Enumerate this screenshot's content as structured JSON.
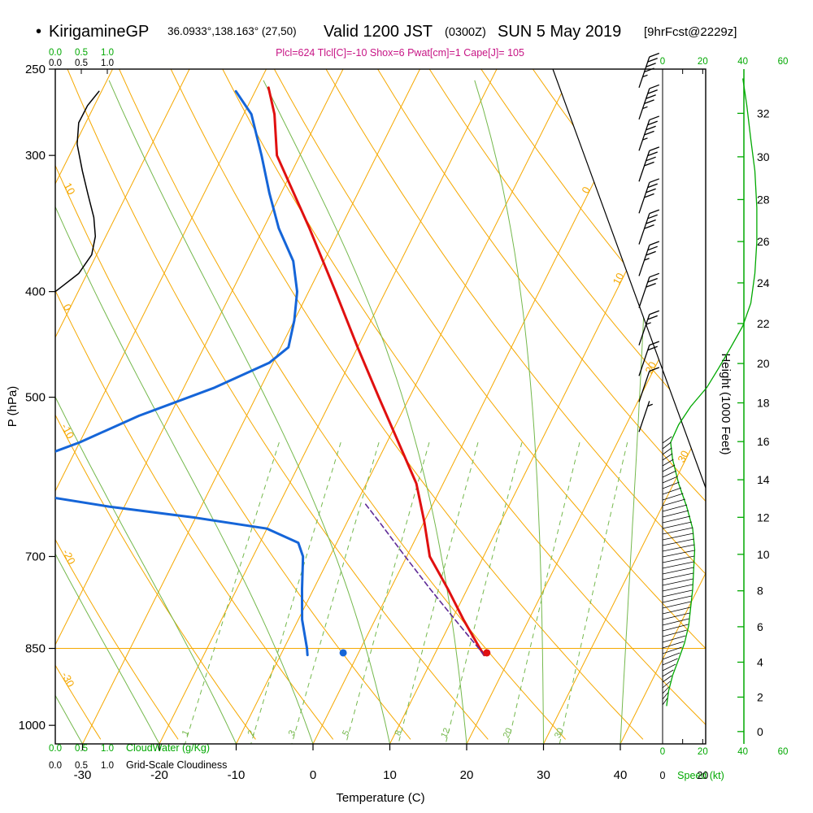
{
  "header": {
    "bullet": "•",
    "station": "KirigamineGP",
    "coords": "36.0933°,138.163° (27,50)",
    "valid": "Valid 1200 JST",
    "valid_z": "(0300Z)",
    "valid_date": "SUN 5 May 2019",
    "forecast": "[9hrFcst@2229z]",
    "indices_text": "Plcl=624 Tlcl[C]=-10 Shox=6 Pwat[cm]=1 Cape[J]= 105",
    "indices": {
      "Plcl": 624,
      "Tlcl_C": -10,
      "Shox": 6,
      "Pwat_cm": 1,
      "Cape_J": 105
    }
  },
  "axes": {
    "pressure": {
      "label": "P (hPa)",
      "ticks": [
        250,
        300,
        400,
        500,
        700,
        850,
        1000
      ]
    },
    "temperature": {
      "label": "Temperature (C)",
      "ticks": [
        -30,
        -20,
        -10,
        0,
        10,
        20,
        30,
        40
      ]
    },
    "height": {
      "label": "Height (1000 Feet)",
      "ticks": [
        0,
        2,
        4,
        6,
        8,
        10,
        12,
        14,
        16,
        18,
        20,
        22,
        24,
        26,
        28,
        30,
        32
      ]
    },
    "speed": {
      "label": "Speed (kt)",
      "green_ticks": [
        0,
        20,
        40,
        60
      ],
      "black_ticks": [
        0,
        20
      ]
    },
    "cloud_scale": {
      "ticks": [
        "0.0",
        "0.5",
        "1.0"
      ],
      "cloudwater_label": "CloudWater (g/Kg)",
      "cloudiness_label": "Grid-Scale Cloudiness"
    },
    "dry_adiabat_labels": [
      10,
      0,
      -10,
      -20,
      -30
    ],
    "isotherm_labels": [
      0,
      10,
      20,
      30
    ],
    "mixing_ratio_labels": [
      1,
      2,
      3,
      5,
      8,
      12,
      20,
      30
    ]
  },
  "chart_data": {
    "type": "skewt_logp",
    "pressure_range_hPa": [
      250,
      1040
    ],
    "temp_axis_range_C": [
      -30,
      40
    ],
    "temperature_profile": {
      "pressure_hPa": [
        862,
        850,
        800,
        750,
        700,
        650,
        600,
        550,
        500,
        450,
        400,
        350,
        300,
        275,
        260
      ],
      "temp_C": [
        16.5,
        15.5,
        11.5,
        7.5,
        3,
        0,
        -3.5,
        -8.5,
        -14,
        -20,
        -26.5,
        -34,
        -43,
        -46,
        -48.5
      ]
    },
    "dewpoint_profile": {
      "pressure_hPa": [
        862,
        850,
        800,
        750,
        700,
        680,
        660,
        645,
        630,
        618,
        600,
        575,
        550,
        520,
        490,
        465,
        450,
        425,
        400,
        375,
        350,
        325,
        300,
        275,
        262
      ],
      "temp_C": [
        -6.5,
        -7,
        -9.5,
        -11.5,
        -13.5,
        -15,
        -20,
        -30,
        -42,
        -50,
        -55,
        -56,
        -50,
        -44,
        -36,
        -30.5,
        -29,
        -30,
        -31.5,
        -34,
        -38,
        -41.5,
        -45,
        -49,
        -52.5
      ]
    },
    "parcel_path": {
      "pressure_hPa": [
        862,
        800,
        750,
        700,
        650,
        624
      ],
      "temp_C": [
        16.5,
        10.4,
        5.2,
        -0.2,
        -5.9,
        -9.1
      ]
    },
    "grid_scale_cloudiness_profile": {
      "pressure_hPa": [
        262,
        270,
        280,
        293,
        310,
        326,
        342,
        356,
        370,
        385,
        395,
        400
      ],
      "value": [
        0.84,
        0.62,
        0.45,
        0.42,
        0.52,
        0.63,
        0.74,
        0.77,
        0.7,
        0.45,
        0.15,
        0.0
      ]
    },
    "wind_speed_profile_kt": {
      "pressure_hPa": [
        255,
        270,
        290,
        310,
        335,
        360,
        385,
        410,
        430,
        450,
        470,
        490,
        510,
        530,
        550,
        570,
        600,
        630,
        660,
        690,
        720,
        750,
        780,
        810,
        840,
        870,
        900,
        930,
        960
      ],
      "speed_kt": [
        40,
        42,
        44,
        46,
        47,
        47,
        46,
        44,
        40,
        34,
        28,
        22,
        14,
        8,
        4,
        5,
        8,
        12,
        15,
        16,
        15.5,
        15,
        14,
        13,
        11,
        8,
        5,
        3,
        2
      ]
    },
    "wind_barbs": [
      {
        "pressure_hPa": 260,
        "speed_kt": 45
      },
      {
        "pressure_hPa": 278,
        "speed_kt": 45
      },
      {
        "pressure_hPa": 297,
        "speed_kt": 45
      },
      {
        "pressure_hPa": 317,
        "speed_kt": 40
      },
      {
        "pressure_hPa": 339,
        "speed_kt": 40
      },
      {
        "pressure_hPa": 362,
        "speed_kt": 40
      },
      {
        "pressure_hPa": 387,
        "speed_kt": 35
      },
      {
        "pressure_hPa": 414,
        "speed_kt": 30
      },
      {
        "pressure_hPa": 448,
        "speed_kt": 25
      },
      {
        "pressure_hPa": 478,
        "speed_kt": 20
      },
      {
        "pressure_hPa": 505,
        "speed_kt": 10
      },
      {
        "pressure_hPa": 538,
        "speed_kt": 5
      }
    ],
    "surface_markers": {
      "temperature": {
        "pressure_hPa": 858,
        "temp_C": 16.7
      },
      "dewpoint": {
        "pressure_hPa": 858,
        "temp_C": -2.0
      }
    }
  },
  "colors": {
    "temperature": "#e01010",
    "dewpoint": "#1565d8",
    "parcel": "#5e2b97",
    "isotherm_grid": "#f5a800",
    "moist_grid": "#74b84c",
    "axis_green": "#00a800",
    "indices": "#c71585",
    "cloudiness": "#000000"
  }
}
